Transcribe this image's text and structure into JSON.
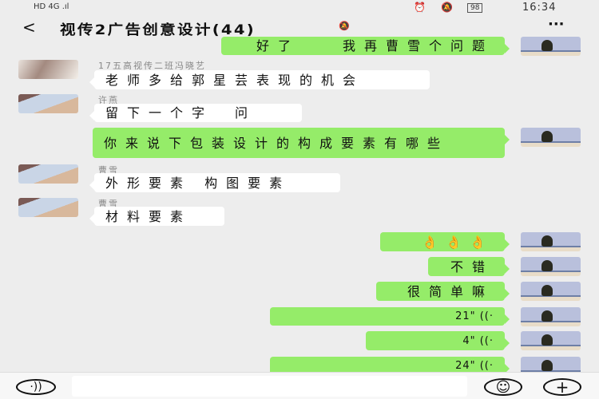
{
  "status_bar": {
    "left": "HD 4G .ıl",
    "battery": "98",
    "time": "16:34"
  },
  "header": {
    "back": "<",
    "title": "视传2广告创意设计(44)",
    "more": "···",
    "mute_icon": "bell-off-icon"
  },
  "messages": [
    {
      "side": "out",
      "text": "好了　　我再曹雪个问题"
    },
    {
      "side": "in",
      "sender": "17五高视传二班冯晓艺",
      "text": "老师多给郭星芸表现的机会"
    },
    {
      "side": "in",
      "sender": "许燕",
      "text": "留下一个字　问"
    },
    {
      "side": "out",
      "text": "你来说下包装设计的构成要素有哪些"
    },
    {
      "side": "in",
      "sender": "曹雪",
      "text": "外形要素  构图要素"
    },
    {
      "side": "in",
      "sender": "曹雪",
      "text": "材料要素"
    },
    {
      "side": "out",
      "text": "👌👌👌"
    },
    {
      "side": "out",
      "text": "不错"
    },
    {
      "side": "out",
      "text": "很简单嘛"
    },
    {
      "side": "out",
      "type": "voice",
      "text": "21\" ((·"
    },
    {
      "side": "out",
      "type": "voice",
      "text": "4\" ((·"
    },
    {
      "side": "out",
      "type": "voice",
      "text": "24\" ((·"
    }
  ],
  "input_bar": {
    "voice_icon": "·))",
    "emoji_icon": "☺",
    "plus_icon": "+",
    "value": ""
  },
  "colors": {
    "bubble_out": "#95ec69",
    "bubble_in": "#ffffff",
    "background": "#ededed"
  }
}
